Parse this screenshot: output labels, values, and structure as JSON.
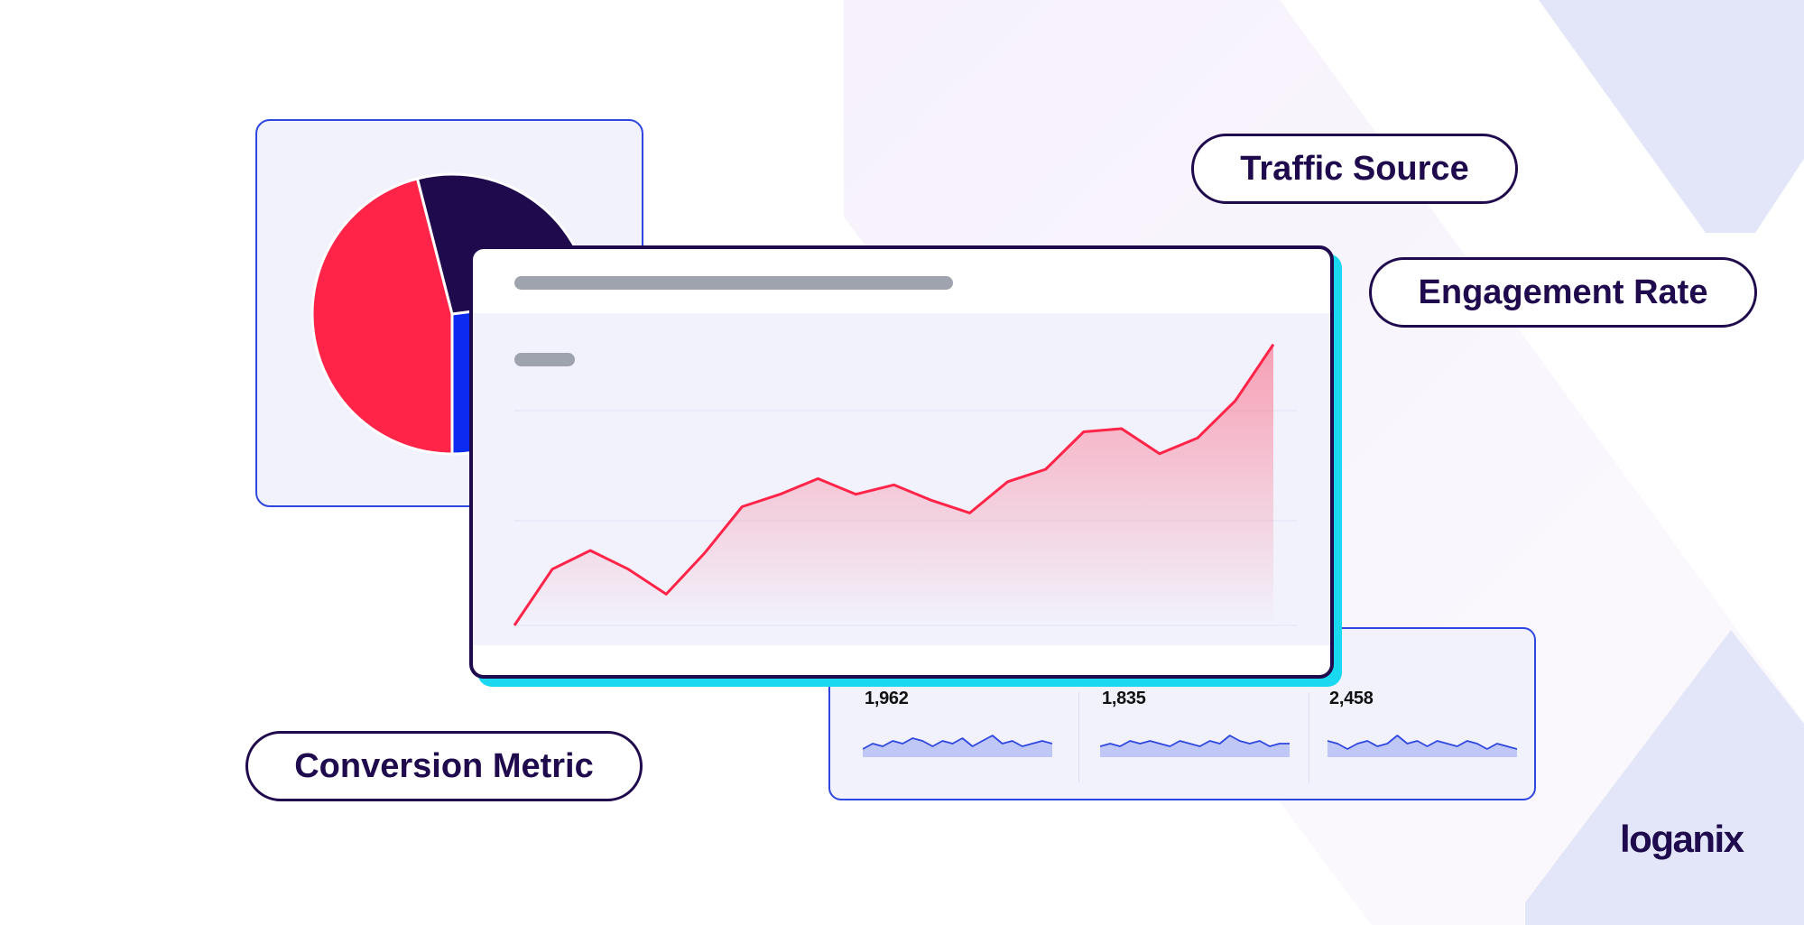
{
  "brand": {
    "logo_text": "loganix"
  },
  "labels": {
    "traffic_source": "Traffic Source",
    "engagement_rate": "Engagement Rate",
    "conversion_metric": "Conversion Metric"
  },
  "colors": {
    "navy": "#1e0a4d",
    "red": "#ff2448",
    "blue": "#0b2bf0",
    "cyan": "#19d8f0",
    "panel": "#f1f2fc"
  },
  "chart_data": [
    {
      "type": "pie",
      "values": [
        46,
        27,
        27
      ],
      "colors": [
        "#ff2448",
        "#1e0a4d",
        "#0b2bf0"
      ]
    },
    {
      "type": "area",
      "values": [
        0,
        18,
        24,
        18,
        10,
        23,
        38,
        42,
        47,
        42,
        45,
        40,
        36,
        46,
        50,
        62,
        63,
        55,
        60,
        72,
        90
      ],
      "ylim": [
        0,
        100
      ],
      "grid": true
    },
    {
      "type": "sparklines",
      "metrics": [
        {
          "value": "1,962",
          "points": [
            3,
            5,
            4,
            6,
            5,
            7,
            6,
            4,
            6,
            5,
            7,
            4,
            6,
            8,
            5,
            6,
            4,
            5,
            6,
            5
          ]
        },
        {
          "value": "1,835",
          "points": [
            4,
            5,
            4,
            6,
            5,
            6,
            5,
            4,
            6,
            5,
            4,
            6,
            5,
            8,
            6,
            5,
            6,
            4,
            5,
            5
          ]
        },
        {
          "value": "2,458",
          "points": [
            6,
            5,
            3,
            5,
            6,
            4,
            5,
            8,
            5,
            6,
            4,
            6,
            5,
            4,
            6,
            5,
            3,
            5,
            4,
            3
          ]
        }
      ]
    }
  ]
}
